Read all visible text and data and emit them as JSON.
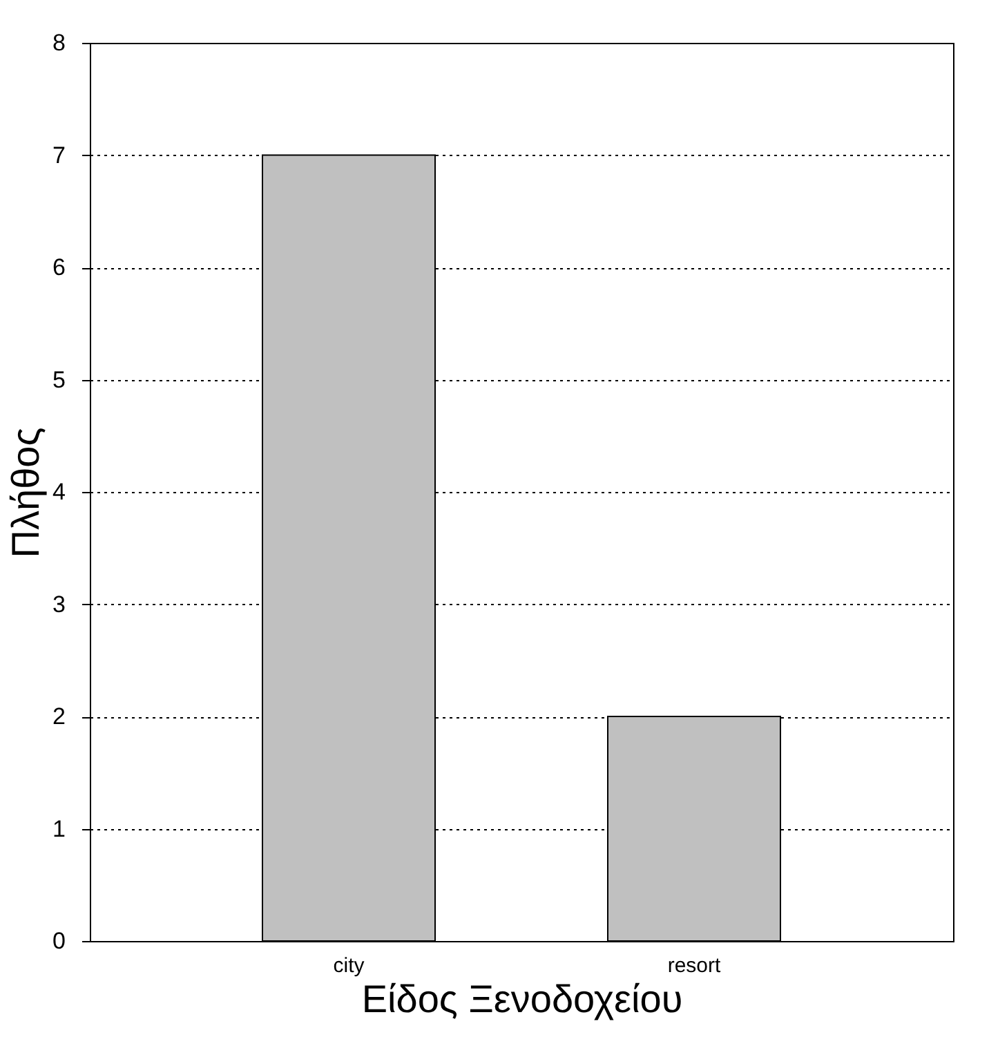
{
  "chart_data": {
    "type": "bar",
    "xlabel": "Είδος Ξενοδοχείου",
    "ylabel": "Πλήθος",
    "categories": [
      "city",
      "resort"
    ],
    "values": [
      7,
      2
    ],
    "color": "#c0c0c0",
    "ylim": [
      0,
      8
    ],
    "yticks": [
      0,
      1,
      2,
      3,
      4,
      5,
      6,
      7,
      8
    ],
    "grid": "y"
  }
}
